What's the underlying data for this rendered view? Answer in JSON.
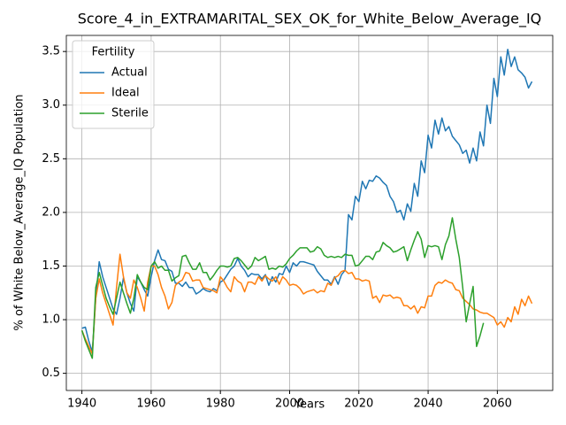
{
  "chart_data": {
    "type": "line",
    "title": "Score_4_in_EXTRAMARITAL_SEX_OK_for_White_Below_Average_IQ",
    "xlabel": "Years",
    "ylabel": "% of White Below_Average_IQ Population",
    "legend_title": "Fertility",
    "legend": "upper left",
    "grid": true,
    "xlim": [
      1935.5,
      2076
    ],
    "ylim": [
      0.34,
      3.65
    ],
    "xticks": [
      1940,
      1960,
      1980,
      2000,
      2020,
      2040,
      2060
    ],
    "yticks": [
      0.5,
      {
        "value": 1,
        "label": "1.0"
      },
      1.5,
      {
        "value": 2,
        "label": "2.0"
      },
      2.5,
      {
        "value": 3,
        "label": "3.0"
      },
      3.5
    ],
    "x": [
      1940,
      1941,
      1942,
      1943,
      1944,
      1945,
      1946,
      1947,
      1948,
      1949,
      1950,
      1951,
      1952,
      1953,
      1954,
      1955,
      1956,
      1957,
      1958,
      1959,
      1960,
      1961,
      1962,
      1963,
      1964,
      1965,
      1966,
      1967,
      1968,
      1969,
      1970,
      1971,
      1972,
      1973,
      1974,
      1975,
      1976,
      1977,
      1978,
      1979,
      1980,
      1981,
      1982,
      1983,
      1984,
      1985,
      1986,
      1987,
      1988,
      1989,
      1990,
      1991,
      1992,
      1993,
      1994,
      1995,
      1996,
      1997,
      1998,
      1999,
      2000,
      2001,
      2002,
      2003,
      2004,
      2005,
      2006,
      2007,
      2008,
      2009,
      2010,
      2011,
      2012,
      2013,
      2014,
      2015,
      2016,
      2017,
      2018,
      2019,
      2020,
      2021,
      2022,
      2023,
      2024,
      2025,
      2026,
      2027,
      2028,
      2029,
      2030,
      2031,
      2032,
      2033,
      2034,
      2035,
      2036,
      2037,
      2038,
      2039,
      2040,
      2041,
      2042,
      2043,
      2044,
      2045,
      2046,
      2047,
      2048,
      2049,
      2050,
      2051,
      2052,
      2053,
      2054,
      2055,
      2056,
      2057,
      2058,
      2059,
      2060,
      2061,
      2062,
      2063,
      2064,
      2065,
      2066,
      2067,
      2068,
      2069,
      2070
    ],
    "series": [
      {
        "name": "Actual",
        "color": "#1f77b4",
        "values": [
          0.92,
          0.93,
          0.8,
          0.7,
          1.2,
          1.54,
          1.4,
          1.3,
          1.2,
          1.1,
          1.05,
          1.2,
          1.39,
          1.25,
          1.15,
          1.08,
          1.4,
          1.35,
          1.28,
          1.22,
          1.4,
          1.55,
          1.65,
          1.56,
          1.55,
          1.47,
          1.45,
          1.34,
          1.34,
          1.31,
          1.35,
          1.3,
          1.3,
          1.24,
          1.26,
          1.29,
          1.27,
          1.26,
          1.29,
          1.27,
          1.35,
          1.37,
          1.42,
          1.47,
          1.5,
          1.57,
          1.5,
          1.46,
          1.4,
          1.43,
          1.42,
          1.42,
          1.38,
          1.42,
          1.32,
          1.4,
          1.35,
          1.43,
          1.42,
          1.5,
          1.44,
          1.53,
          1.5,
          1.54,
          1.54,
          1.53,
          1.52,
          1.51,
          1.45,
          1.41,
          1.37,
          1.37,
          1.33,
          1.4,
          1.33,
          1.42,
          1.46,
          1.98,
          1.93,
          2.15,
          2.1,
          2.29,
          2.22,
          2.3,
          2.29,
          2.34,
          2.32,
          2.28,
          2.25,
          2.15,
          2.1,
          2.0,
          2.02,
          1.93,
          2.08,
          2.01,
          2.27,
          2.15,
          2.48,
          2.37,
          2.72,
          2.6,
          2.86,
          2.73,
          2.88,
          2.76,
          2.8,
          2.71,
          2.67,
          2.63,
          2.55,
          2.58,
          2.46,
          2.6,
          2.48,
          2.75,
          2.62,
          3.0,
          2.83,
          3.25,
          3.08,
          3.45,
          3.28,
          3.52,
          3.36,
          3.45,
          3.33,
          3.3,
          3.26,
          3.16,
          3.22
        ]
      },
      {
        "name": "Ideal",
        "color": "#ff7f0e",
        "values": [
          0.9,
          0.82,
          0.75,
          0.68,
          1.2,
          1.38,
          1.25,
          1.15,
          1.05,
          0.95,
          1.3,
          1.61,
          1.4,
          1.25,
          1.2,
          1.37,
          1.3,
          1.2,
          1.08,
          1.35,
          1.5,
          1.5,
          1.42,
          1.3,
          1.22,
          1.1,
          1.16,
          1.32,
          1.35,
          1.37,
          1.44,
          1.43,
          1.36,
          1.37,
          1.37,
          1.3,
          1.29,
          1.28,
          1.27,
          1.25,
          1.4,
          1.36,
          1.3,
          1.26,
          1.4,
          1.36,
          1.34,
          1.26,
          1.35,
          1.35,
          1.33,
          1.4,
          1.36,
          1.41,
          1.38,
          1.36,
          1.4,
          1.33,
          1.4,
          1.37,
          1.32,
          1.33,
          1.32,
          1.29,
          1.24,
          1.26,
          1.27,
          1.28,
          1.25,
          1.27,
          1.26,
          1.34,
          1.32,
          1.39,
          1.41,
          1.45,
          1.46,
          1.43,
          1.44,
          1.38,
          1.38,
          1.36,
          1.37,
          1.36,
          1.2,
          1.22,
          1.16,
          1.23,
          1.22,
          1.23,
          1.2,
          1.21,
          1.2,
          1.13,
          1.13,
          1.1,
          1.13,
          1.06,
          1.12,
          1.11,
          1.22,
          1.22,
          1.32,
          1.35,
          1.34,
          1.37,
          1.35,
          1.34,
          1.28,
          1.27,
          1.2,
          1.17,
          1.14,
          1.1,
          1.09,
          1.07,
          1.06,
          1.06,
          1.04,
          1.02,
          0.95,
          0.98,
          0.93,
          1.02,
          0.98,
          1.12,
          1.05,
          1.19,
          1.13,
          1.22,
          1.15
        ]
      },
      {
        "name": "Sterile",
        "color": "#2ca02c",
        "values": [
          0.9,
          0.8,
          0.72,
          0.64,
          1.3,
          1.44,
          1.32,
          1.2,
          1.12,
          1.05,
          1.2,
          1.35,
          1.25,
          1.15,
          1.06,
          1.2,
          1.42,
          1.35,
          1.3,
          1.28,
          1.5,
          1.54,
          1.48,
          1.5,
          1.46,
          1.46,
          1.36,
          1.39,
          1.41,
          1.59,
          1.6,
          1.53,
          1.47,
          1.47,
          1.53,
          1.44,
          1.44,
          1.37,
          1.41,
          1.46,
          1.5,
          1.5,
          1.49,
          1.5,
          1.57,
          1.58,
          1.55,
          1.51,
          1.47,
          1.5,
          1.58,
          1.55,
          1.57,
          1.59,
          1.47,
          1.48,
          1.47,
          1.5,
          1.49,
          1.52,
          1.57,
          1.6,
          1.64,
          1.67,
          1.67,
          1.67,
          1.63,
          1.64,
          1.68,
          1.66,
          1.6,
          1.58,
          1.59,
          1.58,
          1.59,
          1.58,
          1.61,
          1.6,
          1.6,
          1.5,
          1.51,
          1.55,
          1.59,
          1.59,
          1.56,
          1.63,
          1.64,
          1.72,
          1.69,
          1.67,
          1.63,
          1.64,
          1.66,
          1.68,
          1.55,
          1.65,
          1.74,
          1.82,
          1.75,
          1.58,
          1.69,
          1.68,
          1.69,
          1.68,
          1.56,
          1.7,
          1.78,
          1.95,
          1.75,
          1.58,
          1.3,
          0.98,
          1.15,
          1.31,
          0.75,
          0.85,
          0.97,
          null,
          null,
          null,
          null,
          null,
          null,
          null,
          null,
          null,
          null,
          null,
          null,
          null,
          null
        ]
      }
    ]
  }
}
